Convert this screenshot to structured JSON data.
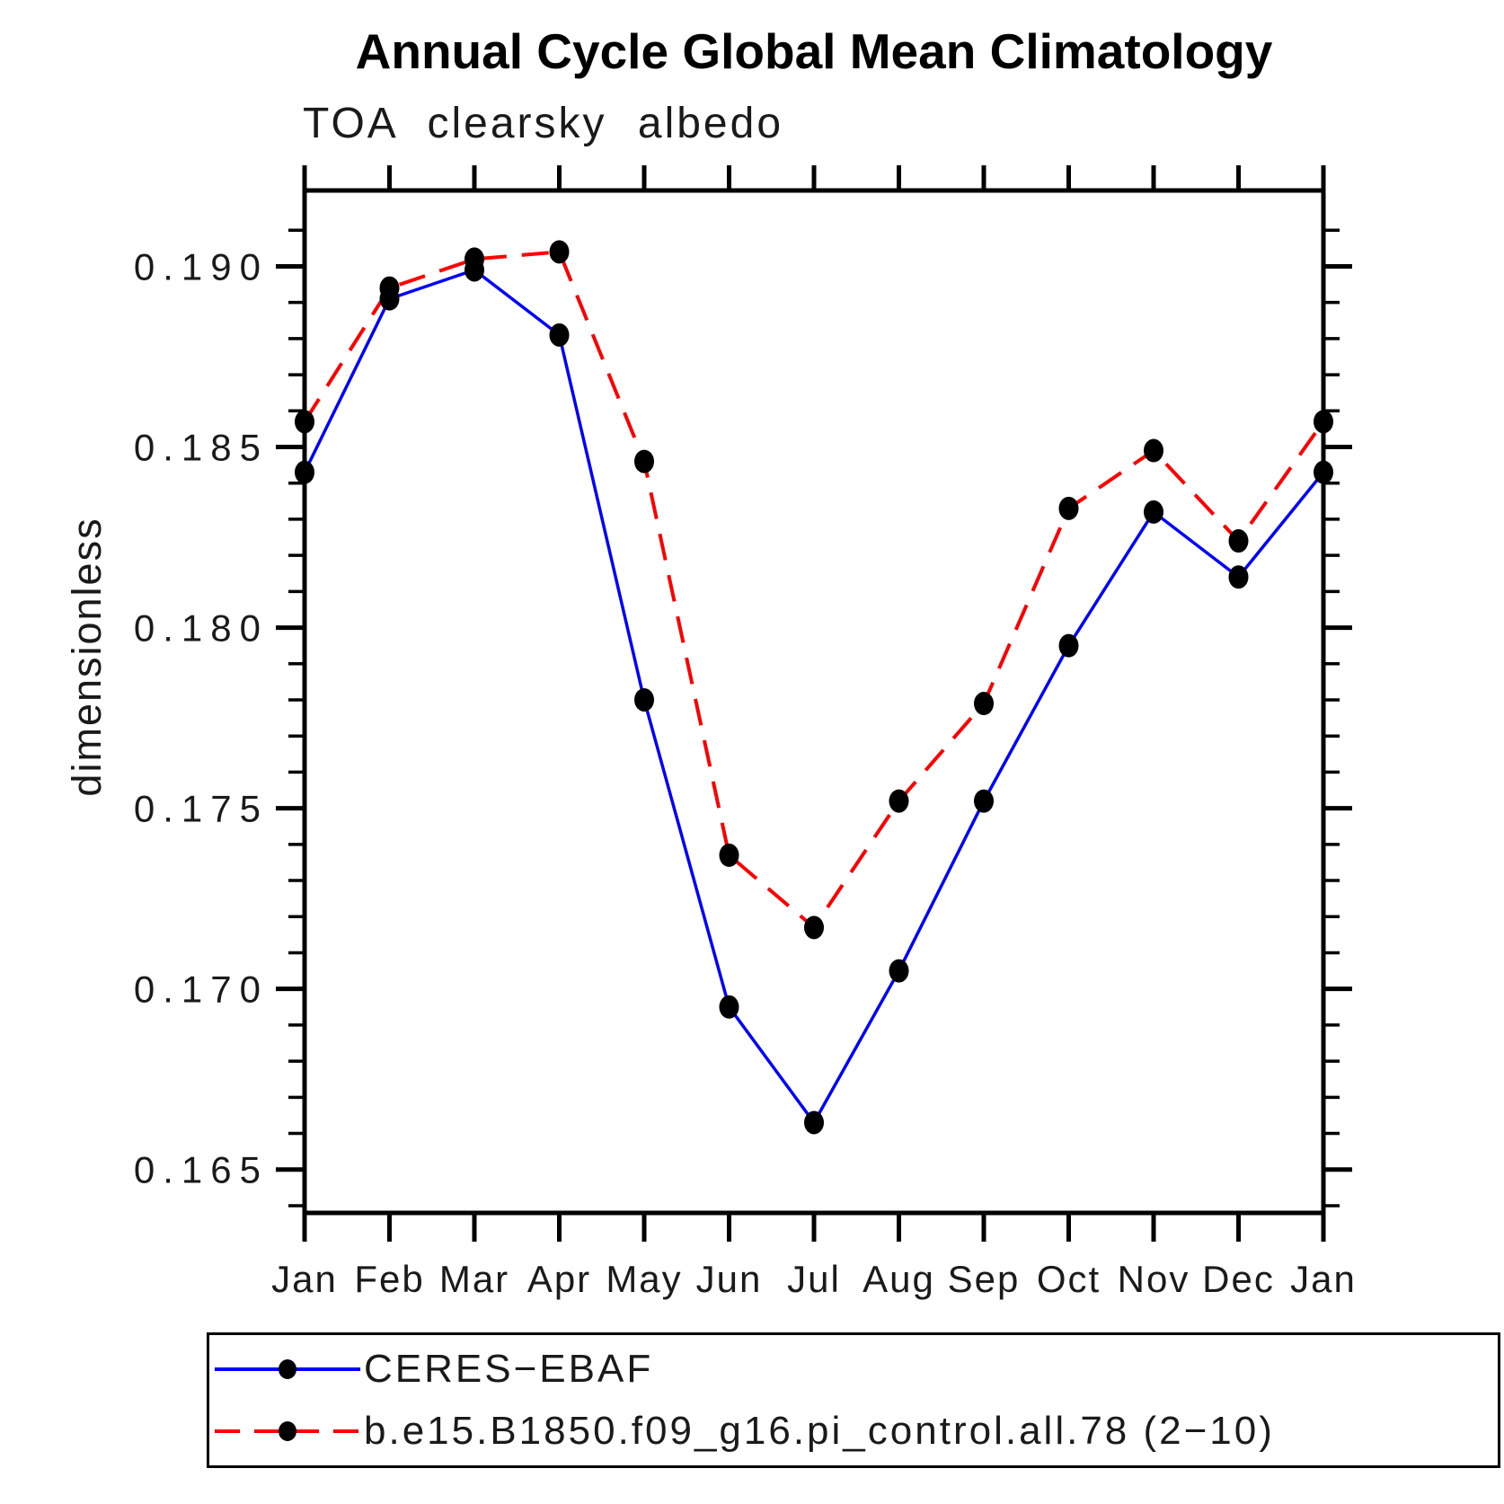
{
  "title": "Annual Cycle Global Mean Climatology",
  "subtitle": "TOA clearsky albedo",
  "colors": {
    "background": "#ffffff",
    "axis": "#000000",
    "marker": "#000000",
    "series_obs": "#0000ff",
    "series_model": "#ff0000"
  },
  "legend": {
    "position": "bottom",
    "border_color": "#000000"
  },
  "chart_data": {
    "type": "line",
    "title": "Annual Cycle Global Mean Climatology",
    "subtitle": "TOA clearsky albedo",
    "xlabel": "",
    "ylabel": "dimensionless",
    "categories": [
      "Jan",
      "Feb",
      "Mar",
      "Apr",
      "May",
      "Jun",
      "Jul",
      "Aug",
      "Sep",
      "Oct",
      "Nov",
      "Dec",
      "Jan"
    ],
    "series": [
      {
        "name": "CERES−EBAF",
        "color": "#0000ff",
        "line_style": "solid",
        "marker": "filled-circle",
        "marker_color": "#000000",
        "values": [
          0.1843,
          0.1891,
          0.1899,
          0.1881,
          0.178,
          0.1695,
          0.1663,
          0.1705,
          0.1752,
          0.1795,
          0.1832,
          0.1814,
          0.1843
        ]
      },
      {
        "name": "b.e15.B1850.f09_g16.pi_control.all.78 (2−10)",
        "color": "#ff0000",
        "line_style": "dashed",
        "marker": "filled-circle",
        "marker_color": "#000000",
        "values": [
          0.1857,
          0.1894,
          0.1902,
          0.1904,
          0.1846,
          0.1737,
          0.1717,
          0.1752,
          0.1779,
          0.1833,
          0.1849,
          0.1824,
          0.1857
        ]
      }
    ],
    "ylim": [
      0.1638,
      0.1921
    ],
    "yticks_major": [
      0.165,
      0.17,
      0.175,
      0.18,
      0.185,
      0.19
    ],
    "ytick_labels": [
      "0.165",
      "0.170",
      "0.175",
      "0.180",
      "0.185",
      "0.190"
    ],
    "minor_tick_step": 0.001,
    "grid": false,
    "legend_position": "bottom",
    "marker_color": "#000000"
  }
}
